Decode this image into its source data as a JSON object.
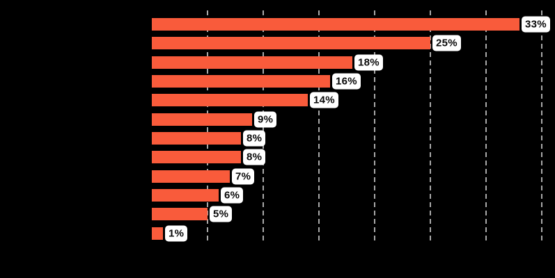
{
  "chart_data": {
    "type": "bar",
    "orientation": "horizontal",
    "values": [
      33,
      25,
      18,
      16,
      14,
      9,
      8,
      8,
      7,
      6,
      5,
      1
    ],
    "value_labels": [
      "33%",
      "25%",
      "18%",
      "16%",
      "14%",
      "9%",
      "8%",
      "8%",
      "7%",
      "6%",
      "5%",
      "1%"
    ],
    "xlim": [
      0,
      35
    ],
    "gridline_values": [
      5,
      10,
      15,
      20,
      25,
      30,
      35
    ],
    "grid_style": "dashed-vertical",
    "legend_position": "none"
  },
  "style": {
    "background_color": "#000000",
    "bar_color": "#f95b3b",
    "gridline_color": "#a9a9a9",
    "chip_background": "#ffffff",
    "chip_text_color": "#0a0a0a"
  }
}
